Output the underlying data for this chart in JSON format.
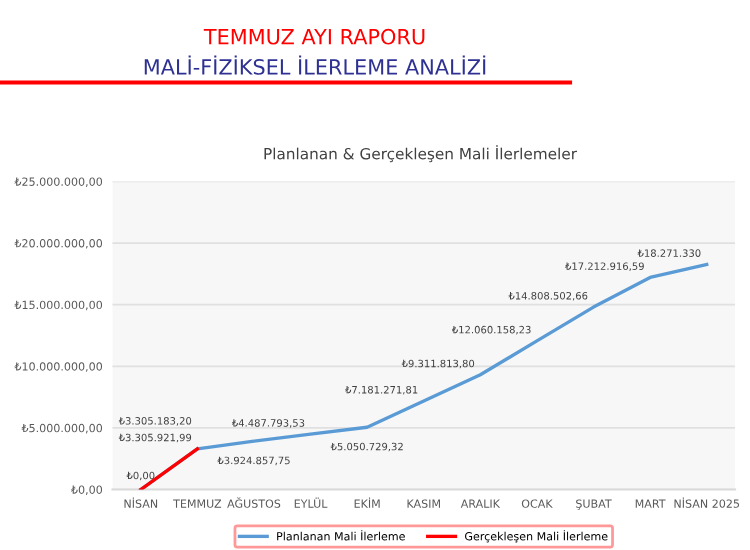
{
  "chart_data": {
    "type": "line",
    "title": "Planlanan & Gerçekleşen Mali İlerlemeler",
    "annotations": [
      "TEMMUZ AYI RAPORU",
      "MALİ-FİZİKSEL İLERLEME ANALİZİ"
    ],
    "categories": [
      "NİSAN",
      "TEMMUZ",
      "AĞUSTOS",
      "EYLÜL",
      "EKİM",
      "KASIM",
      "ARALIK",
      "OCAK",
      "ŞUBAT",
      "MART",
      "NİSAN 2025"
    ],
    "series": [
      {
        "name": "Planlanan Mali İlerleme",
        "color": "#5b9bd5",
        "values": [
          0,
          3305183.2,
          3924857.75,
          4487793.53,
          5050729.32,
          7181271.81,
          9311813.8,
          12060158.23,
          14808502.66,
          17212916.59,
          18271330
        ],
        "value_labels": [
          null,
          "₺3.305.183,20",
          "₺3.924.857,75",
          "₺4.487.793,53",
          "₺5.050.729,32",
          "₺7.181.271,81",
          "₺9.311.813,80",
          "₺12.060.158,23",
          "₺14.808.502,66",
          "₺17.212.916,59",
          "₺18.271.330"
        ]
      },
      {
        "name": "Gerçekleşen Mali İlerleme",
        "color": "#ff0000",
        "values": [
          0,
          3305921.99,
          null,
          null,
          null,
          null,
          null,
          null,
          null,
          null,
          null
        ],
        "value_labels": [
          "₺0,00",
          "₺3.305.921,99",
          null,
          null,
          null,
          null,
          null,
          null,
          null,
          null,
          null
        ]
      }
    ],
    "ylim": [
      0,
      25000000
    ],
    "yticks": [
      {
        "value": 0,
        "label": "₺0,00"
      },
      {
        "value": 5000000,
        "label": "₺5.000.000,00"
      },
      {
        "value": 10000000,
        "label": "₺10.000.000,00"
      },
      {
        "value": 15000000,
        "label": "₺15.000.000,00"
      },
      {
        "value": 20000000,
        "label": "₺20.000.000,00"
      },
      {
        "value": 25000000,
        "label": "₺25.000.000,00"
      }
    ],
    "grid": "y",
    "legend": "bottom",
    "marker": "none",
    "line_style": "solid"
  }
}
